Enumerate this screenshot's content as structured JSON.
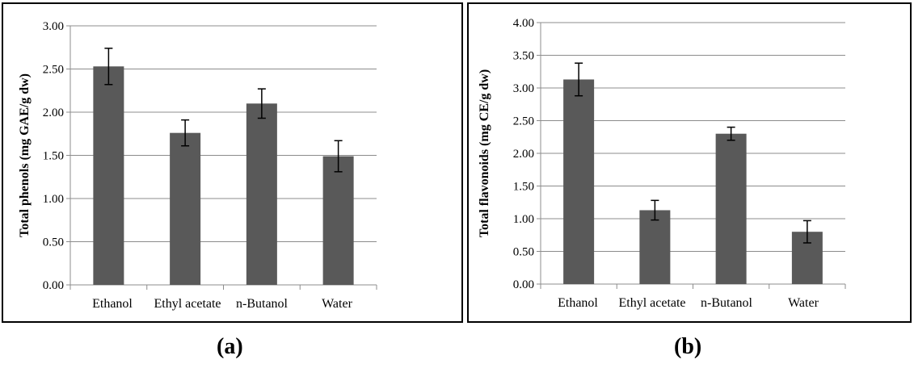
{
  "chart_data": [
    {
      "type": "bar",
      "ylabel": "Total phenols (mg GAE/g dw)",
      "xlabel": "",
      "categories": [
        "Ethanol",
        "Ethyl acetate",
        "n-Butanol",
        "Water"
      ],
      "values": [
        2.53,
        1.76,
        2.1,
        1.49
      ],
      "errors": [
        0.21,
        0.15,
        0.17,
        0.18
      ],
      "ylim": [
        0,
        3.0
      ],
      "yticks": [
        "0.00",
        "0.50",
        "1.00",
        "1.50",
        "2.00",
        "2.50",
        "3.00"
      ],
      "grid": true,
      "bar_color": "#595959",
      "caption": "(a)"
    },
    {
      "type": "bar",
      "ylabel": "Total flavonoids (mg CE/g dw)",
      "xlabel": "",
      "categories": [
        "Ethanol",
        "Ethyl acetate",
        "n-Butanol",
        "Water"
      ],
      "values": [
        3.13,
        1.13,
        2.3,
        0.8
      ],
      "errors": [
        0.25,
        0.15,
        0.1,
        0.17
      ],
      "ylim": [
        0,
        4.0
      ],
      "yticks": [
        "0.00",
        "0.50",
        "1.00",
        "1.50",
        "2.00",
        "2.50",
        "3.00",
        "3.50",
        "4.00"
      ],
      "grid": true,
      "bar_color": "#595959",
      "caption": "(b)"
    }
  ]
}
